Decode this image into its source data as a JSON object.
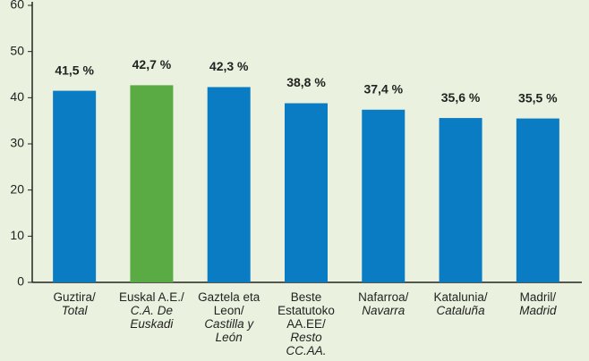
{
  "chart_data": {
    "type": "bar",
    "categories": [
      [
        "Guztira/",
        "Total"
      ],
      [
        "Euskal A.E./",
        "C.A. De Euskadi"
      ],
      [
        "Gaztela eta Leon/",
        "Castilla y León"
      ],
      [
        "Beste Estatutoko AA.EE/",
        "Resto CC.AA."
      ],
      [
        "Nafarroa/",
        "Navarra"
      ],
      [
        "Katalunia/",
        "Cataluña"
      ],
      [
        "Madril/",
        "Madrid"
      ]
    ],
    "values": [
      41.5,
      42.7,
      42.3,
      38.8,
      37.4,
      35.6,
      35.5
    ],
    "value_labels": [
      "41,5 %",
      "42,7 %",
      "42,3 %",
      "38,8 %",
      "37,4 %",
      "35,6 %",
      "35,5 %"
    ],
    "colors": [
      "#0a7cc4",
      "#5bab45",
      "#0a7cc4",
      "#0a7cc4",
      "#0a7cc4",
      "#0a7cc4",
      "#0a7cc4"
    ],
    "ylim": [
      0,
      60
    ],
    "yticks": [
      0,
      10,
      20,
      30,
      40,
      50,
      60
    ],
    "grid": false
  }
}
